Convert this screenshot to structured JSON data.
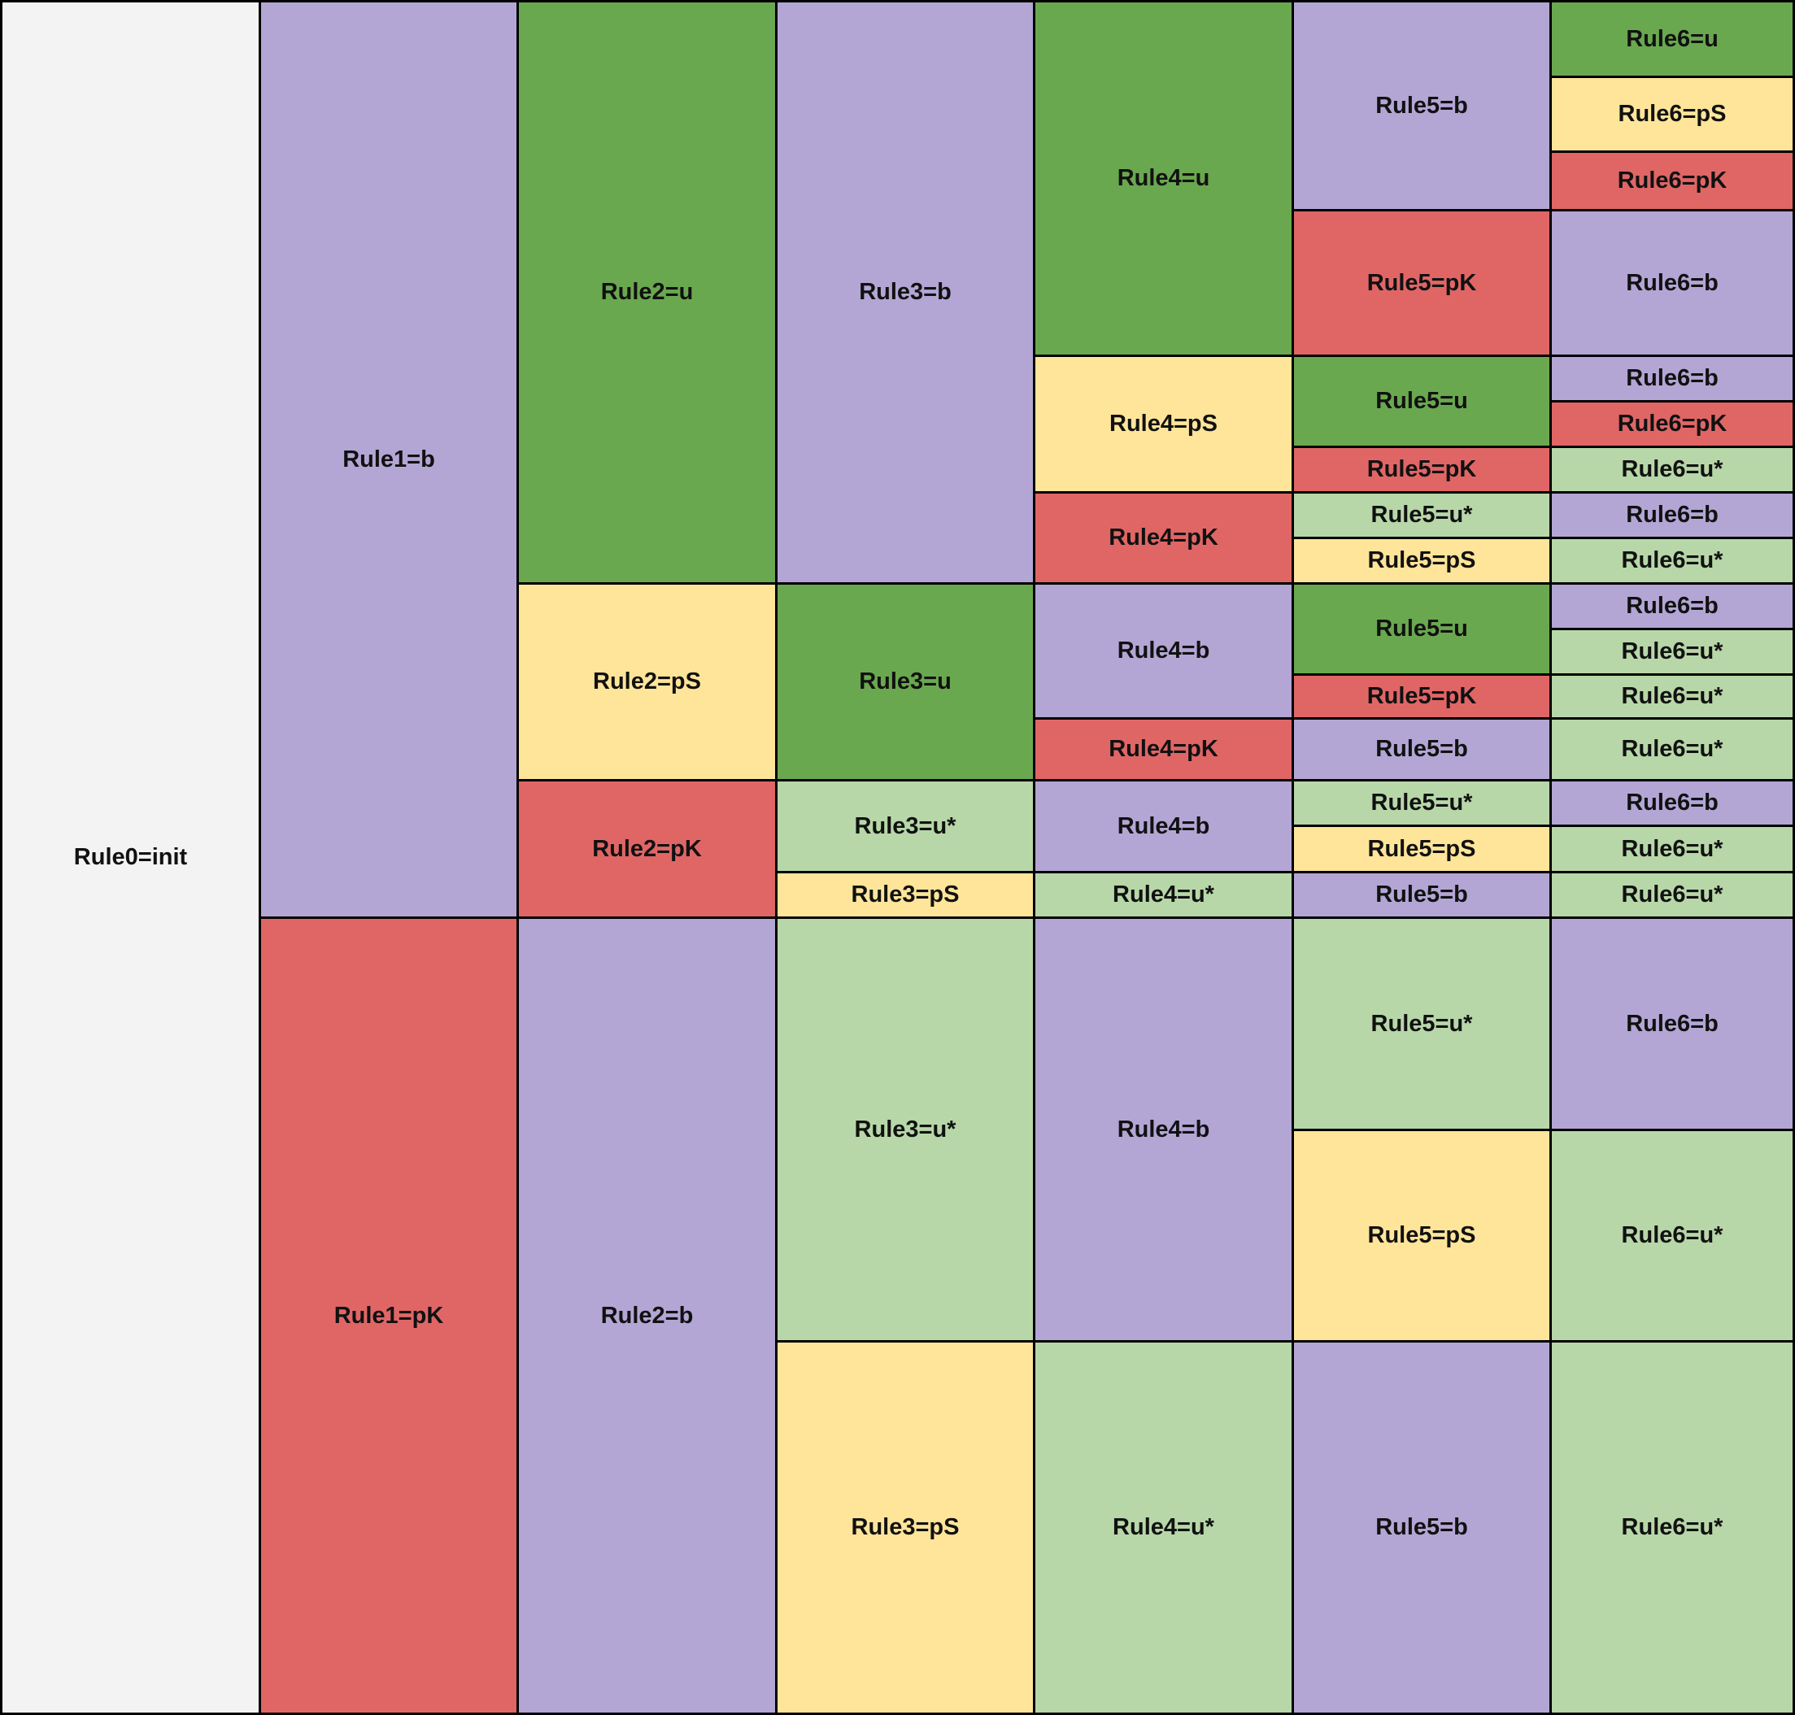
{
  "colors": {
    "init": "#f3f3f3",
    "b": "#b3a6d5",
    "u": "#6aa84f",
    "u*": "#b7d7a8",
    "pS": "#ffe599",
    "pK": "#e06666"
  },
  "columns": [
    [
      {
        "label": "Rule0=init",
        "type": "init",
        "span": 1
      }
    ],
    [
      {
        "label": "Rule1=b",
        "type": "b",
        "span": 0.535
      },
      {
        "label": "Rule1=pK",
        "type": "pK",
        "span": 0.465
      }
    ],
    [
      {
        "label": "Rule2=u",
        "type": "u",
        "span": 0.34
      },
      {
        "label": "Rule2=pS",
        "type": "pS",
        "span": 0.115
      },
      {
        "label": "Rule2=pK",
        "type": "pK",
        "span": 0.08
      },
      {
        "label": "Rule2=b",
        "type": "b",
        "span": 0.465
      }
    ],
    [
      {
        "label": "Rule3=b",
        "type": "b",
        "span": 0.34
      },
      {
        "label": "Rule3=u",
        "type": "u",
        "span": 0.115
      },
      {
        "label": "Rule3=u*",
        "type": "u*",
        "span": 0.0535
      },
      {
        "label": "Rule3=pS",
        "type": "pS",
        "span": 0.0265
      },
      {
        "label": "Rule3=u*",
        "type": "u*",
        "span": 0.2475
      },
      {
        "label": "Rule3=pS",
        "type": "pS",
        "span": 0.2175
      }
    ],
    [
      {
        "label": "Rule4=u",
        "type": "u",
        "span": 0.207
      },
      {
        "label": "Rule4=pS",
        "type": "pS",
        "span": 0.08
      },
      {
        "label": "Rule4=pK",
        "type": "pK",
        "span": 0.053
      },
      {
        "label": "Rule4=b",
        "type": "b",
        "span": 0.079
      },
      {
        "label": "Rule4=pK",
        "type": "pK",
        "span": 0.036
      },
      {
        "label": "Rule4=b",
        "type": "b",
        "span": 0.0535
      },
      {
        "label": "Rule4=u*",
        "type": "u*",
        "span": 0.0265
      },
      {
        "label": "Rule4=b",
        "type": "b",
        "span": 0.2475
      },
      {
        "label": "Rule4=u*",
        "type": "u*",
        "span": 0.2175
      }
    ],
    [
      {
        "label": "Rule5=b",
        "type": "b",
        "span": 0.122
      },
      {
        "label": "Rule5=pK",
        "type": "pK",
        "span": 0.085
      },
      {
        "label": "Rule5=u",
        "type": "u",
        "span": 0.053
      },
      {
        "label": "Rule5=pK",
        "type": "pK",
        "span": 0.027
      },
      {
        "label": "Rule5=u*",
        "type": "u*",
        "span": 0.0265
      },
      {
        "label": "Rule5=pS",
        "type": "pS",
        "span": 0.0265
      },
      {
        "label": "Rule5=u",
        "type": "u",
        "span": 0.053
      },
      {
        "label": "Rule5=pK",
        "type": "pK",
        "span": 0.026
      },
      {
        "label": "Rule5=b",
        "type": "b",
        "span": 0.036
      },
      {
        "label": "Rule5=u*",
        "type": "u*",
        "span": 0.0265
      },
      {
        "label": "Rule5=pS",
        "type": "pS",
        "span": 0.027
      },
      {
        "label": "Rule5=b",
        "type": "b",
        "span": 0.0265
      },
      {
        "label": "Rule5=u*",
        "type": "u*",
        "span": 0.124
      },
      {
        "label": "Rule5=pS",
        "type": "pS",
        "span": 0.1235
      },
      {
        "label": "Rule5=b",
        "type": "b",
        "span": 0.2175
      }
    ],
    [
      {
        "label": "Rule6=u",
        "type": "u",
        "span": 0.044
      },
      {
        "label": "Rule6=pS",
        "type": "pS",
        "span": 0.044
      },
      {
        "label": "Rule6=pK",
        "type": "pK",
        "span": 0.034
      },
      {
        "label": "Rule6=b",
        "type": "b",
        "span": 0.085
      },
      {
        "label": "Rule6=b",
        "type": "b",
        "span": 0.0265
      },
      {
        "label": "Rule6=pK",
        "type": "pK",
        "span": 0.0265
      },
      {
        "label": "Rule6=u*",
        "type": "u*",
        "span": 0.027
      },
      {
        "label": "Rule6=b",
        "type": "b",
        "span": 0.0265
      },
      {
        "label": "Rule6=u*",
        "type": "u*",
        "span": 0.0265
      },
      {
        "label": "Rule6=b",
        "type": "b",
        "span": 0.0265
      },
      {
        "label": "Rule6=u*",
        "type": "u*",
        "span": 0.0265
      },
      {
        "label": "Rule6=u*",
        "type": "u*",
        "span": 0.026
      },
      {
        "label": "Rule6=u*",
        "type": "u*",
        "span": 0.036
      },
      {
        "label": "Rule6=b",
        "type": "b",
        "span": 0.0265
      },
      {
        "label": "Rule6=u*",
        "type": "u*",
        "span": 0.027
      },
      {
        "label": "Rule6=u*",
        "type": "u*",
        "span": 0.0265
      },
      {
        "label": "Rule6=b",
        "type": "b",
        "span": 0.124
      },
      {
        "label": "Rule6=u*",
        "type": "u*",
        "span": 0.1235
      },
      {
        "label": "Rule6=u*",
        "type": "u*",
        "span": 0.2175
      }
    ]
  ]
}
